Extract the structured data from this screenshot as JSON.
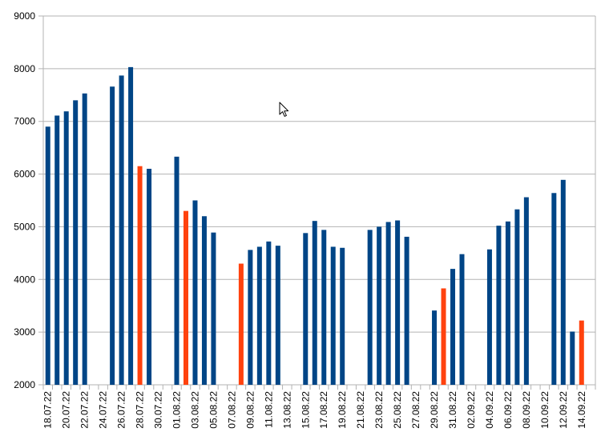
{
  "chart_data": {
    "type": "bar",
    "title": "",
    "xlabel": "",
    "ylabel": "",
    "ylim": [
      2000,
      9000
    ],
    "yticks": [
      2000,
      3000,
      4000,
      5000,
      6000,
      7000,
      8000,
      9000
    ],
    "grid": true,
    "legend": "none",
    "colors": {
      "default": "#004586",
      "highlight": "#ff420e",
      "grid": "#b3b3b3",
      "axis": "#b3b3b3"
    },
    "categories": [
      "18.07.22",
      "19.07.22",
      "20.07.22",
      "21.07.22",
      "22.07.22",
      "23.07.22",
      "24.07.22",
      "25.07.22",
      "26.07.22",
      "27.07.22",
      "28.07.22",
      "29.07.22",
      "30.07.22",
      "31.07.22",
      "01.08.22",
      "02.08.22",
      "03.08.22",
      "04.08.22",
      "05.08.22",
      "06.08.22",
      "07.08.22",
      "08.08.22",
      "09.08.22",
      "10.08.22",
      "11.08.22",
      "12.08.22",
      "13.08.22",
      "14.08.22",
      "15.08.22",
      "16.08.22",
      "17.08.22",
      "18.08.22",
      "19.08.22",
      "20.08.22",
      "21.08.22",
      "22.08.22",
      "23.08.22",
      "24.08.22",
      "25.08.22",
      "26.08.22",
      "27.08.22",
      "28.08.22",
      "29.08.22",
      "30.08.22",
      "31.08.22",
      "01.09.22",
      "02.09.22",
      "03.09.22",
      "04.09.22",
      "05.09.22",
      "06.09.22",
      "07.09.22",
      "08.09.22",
      "09.09.22",
      "10.09.22",
      "11.09.22",
      "12.09.22",
      "13.09.22",
      "14.09.22",
      "15.09.22"
    ],
    "tick_labels": [
      "18.07.22",
      "20.07.22",
      "22.07.22",
      "24.07.22",
      "26.07.22",
      "28.07.22",
      "30.07.22",
      "01.08.22",
      "03.08.22",
      "05.08.22",
      "07.08.22",
      "09.08.22",
      "11.08.22",
      "13.08.22",
      "15.08.22",
      "17.08.22",
      "19.08.22",
      "21.08.22",
      "23.08.22",
      "25.08.22",
      "27.08.22",
      "29.08.22",
      "31.08.22",
      "02.09.22",
      "04.09.22",
      "06.09.22",
      "08.09.22",
      "10.09.22",
      "12.09.22",
      "14.09.22"
    ],
    "values": [
      6900,
      7110,
      7190,
      7400,
      7530,
      null,
      null,
      7660,
      7870,
      8030,
      6150,
      6100,
      null,
      null,
      6330,
      5300,
      5500,
      5200,
      4890,
      null,
      null,
      4300,
      4560,
      4620,
      4720,
      4640,
      null,
      null,
      4880,
      5110,
      4940,
      4620,
      4600,
      null,
      null,
      4940,
      5000,
      5090,
      5120,
      4810,
      null,
      null,
      3410,
      3830,
      4200,
      4480,
      null,
      null,
      4570,
      5020,
      5100,
      5330,
      5560,
      null,
      null,
      5640,
      5890,
      3010,
      3220,
      null
    ],
    "highlighted": [
      "28.07.22",
      "02.08.22",
      "08.08.22",
      "30.08.22",
      "14.09.22"
    ]
  }
}
